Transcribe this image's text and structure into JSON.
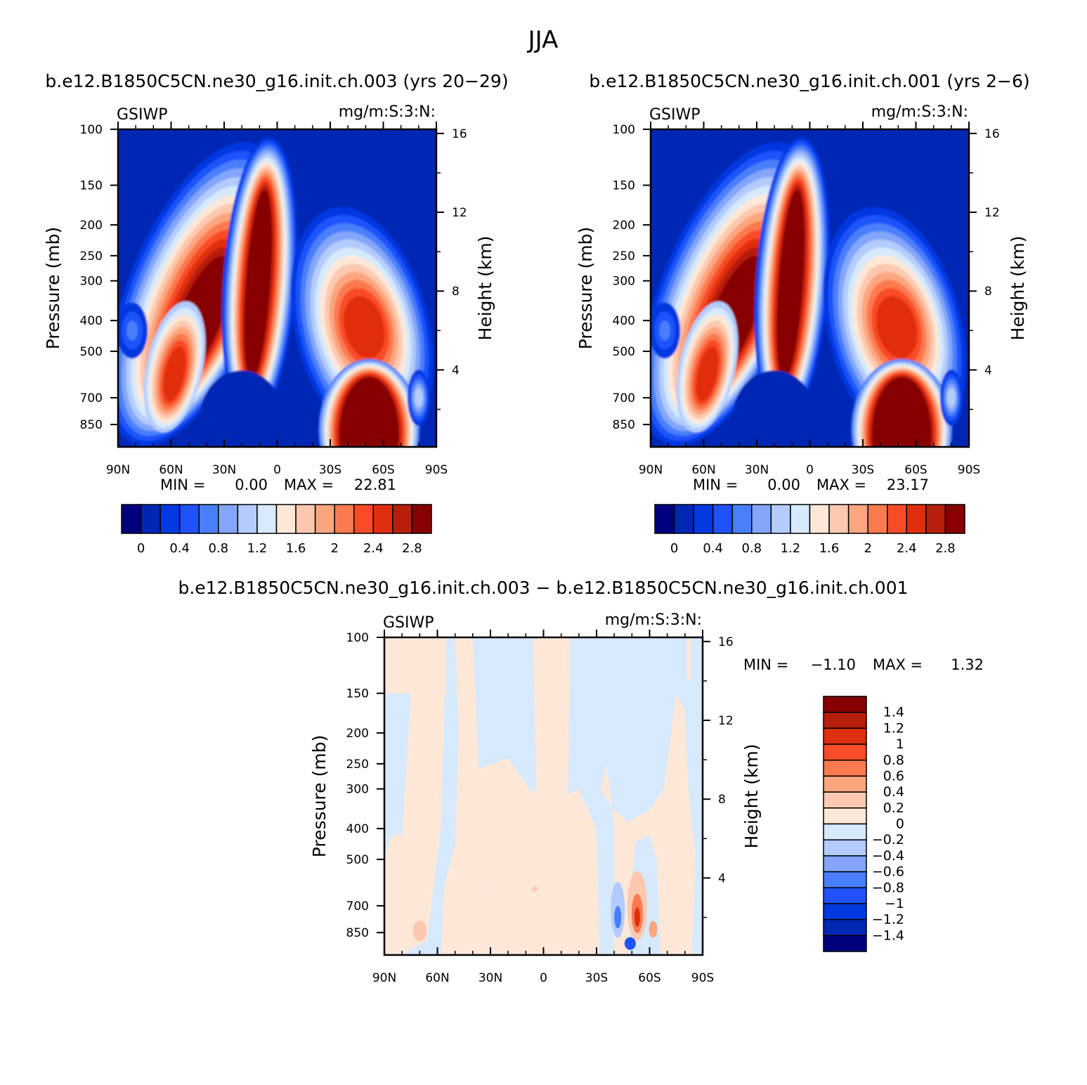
{
  "figure_title": "JJA",
  "colors": {
    "main_scale": [
      "#00007f",
      "#0027b4",
      "#0039e0",
      "#1f52fb",
      "#4a7ffb",
      "#84a6fa",
      "#b3ccfd",
      "#d6e9fd",
      "#fde8d8",
      "#fcc9b0",
      "#fca680",
      "#fb7a50",
      "#f94c28",
      "#e02f10",
      "#b51f0b",
      "#870000"
    ],
    "diff_scale": [
      "#00007f",
      "#0027b4",
      "#0039e0",
      "#1f52fb",
      "#4a7ffb",
      "#84a6fa",
      "#b3ccfd",
      "#d6e9fd",
      "#fde8d8",
      "#fcc9b0",
      "#fca680",
      "#fb7a50",
      "#f94c28",
      "#e02f10",
      "#b51f0b",
      "#870000"
    ]
  },
  "chart_data": [
    {
      "type": "heatmap",
      "title": "b.e12.B1850C5CN.ne30_g16.init.ch.003 (yrs 20-29)",
      "left_label": "GSIWP",
      "right_label": "mg/m:S:3:N:",
      "ylabel": "Pressure (mb)",
      "y2label": "Height (km)",
      "xlabel": "",
      "x_ticks": [
        "90N",
        "60N",
        "30N",
        "0",
        "30S",
        "60S",
        "90S"
      ],
      "x_values": [
        90,
        60,
        30,
        0,
        -30,
        -60,
        -90
      ],
      "y_ticks": [
        "100",
        "150",
        "200",
        "250",
        "300",
        "400",
        "500",
        "700",
        "850"
      ],
      "y_values": [
        100,
        150,
        200,
        250,
        300,
        400,
        500,
        700,
        850
      ],
      "y2_ticks": [
        "16",
        "12",
        "8",
        "4"
      ],
      "y2_values": [
        16,
        12,
        8,
        4
      ],
      "ylim": [
        100,
        1000
      ],
      "min_label": "MIN =",
      "min_value": "0.00",
      "max_label": "MAX =",
      "max_value": "22.81",
      "colorbar_orientation": "horizontal",
      "colorbar_labels": [
        "0",
        "0.4",
        "0.8",
        "1.2",
        "1.6",
        "2",
        "2.4",
        "2.8"
      ],
      "levels": [
        0,
        0.2,
        0.4,
        0.6,
        0.8,
        1,
        1.2,
        1.4,
        1.6,
        1.8,
        2,
        2.2,
        2.4,
        2.6,
        2.8
      ]
    },
    {
      "type": "heatmap",
      "title": "b.e12.B1850C5CN.ne30_g16.init.ch.001 (yrs 2-6)",
      "left_label": "GSIWP",
      "right_label": "mg/m:S:3:N:",
      "ylabel": "Pressure (mb)",
      "y2label": "Height (km)",
      "xlabel": "",
      "x_ticks": [
        "90N",
        "60N",
        "30N",
        "0",
        "30S",
        "60S",
        "90S"
      ],
      "x_values": [
        90,
        60,
        30,
        0,
        -30,
        -60,
        -90
      ],
      "y_ticks": [
        "100",
        "150",
        "200",
        "250",
        "300",
        "400",
        "500",
        "700",
        "850"
      ],
      "y_values": [
        100,
        150,
        200,
        250,
        300,
        400,
        500,
        700,
        850
      ],
      "y2_ticks": [
        "16",
        "12",
        "8",
        "4"
      ],
      "y2_values": [
        16,
        12,
        8,
        4
      ],
      "ylim": [
        100,
        1000
      ],
      "min_label": "MIN =",
      "min_value": "0.00",
      "max_label": "MAX =",
      "max_value": "23.17",
      "colorbar_orientation": "horizontal",
      "colorbar_labels": [
        "0",
        "0.4",
        "0.8",
        "1.2",
        "1.6",
        "2",
        "2.4",
        "2.8"
      ],
      "levels": [
        0,
        0.2,
        0.4,
        0.6,
        0.8,
        1,
        1.2,
        1.4,
        1.6,
        1.8,
        2,
        2.2,
        2.4,
        2.6,
        2.8
      ]
    },
    {
      "type": "heatmap",
      "title": "b.e12.B1850C5CN.ne30_g16.init.ch.003 - b.e12.B1850C5CN.ne30_g16.init.ch.001",
      "left_label": "GSIWP",
      "right_label": "mg/m:S:3:N:",
      "ylabel": "Pressure (mb)",
      "y2label": "Height (km)",
      "xlabel": "",
      "x_ticks": [
        "90N",
        "60N",
        "30N",
        "0",
        "30S",
        "60S",
        "90S"
      ],
      "x_values": [
        90,
        60,
        30,
        0,
        -30,
        -60,
        -90
      ],
      "y_ticks": [
        "100",
        "150",
        "200",
        "250",
        "300",
        "400",
        "500",
        "700",
        "850"
      ],
      "y_values": [
        100,
        150,
        200,
        250,
        300,
        400,
        500,
        700,
        850
      ],
      "y2_ticks": [
        "16",
        "12",
        "8",
        "4"
      ],
      "y2_values": [
        16,
        12,
        8,
        4
      ],
      "ylim": [
        100,
        1000
      ],
      "min_label": "MIN =",
      "min_value": "-1.10",
      "max_label": "MAX =",
      "max_value": "1.32",
      "colorbar_orientation": "vertical",
      "colorbar_labels": [
        "1.4",
        "1.2",
        "1",
        "0.8",
        "0.6",
        "0.4",
        "0.2",
        "0",
        "-0.2",
        "-0.4",
        "-0.6",
        "-0.8",
        "-1",
        "-1.2",
        "-1.4"
      ],
      "levels": [
        -1.4,
        -1.2,
        -1,
        -0.8,
        -0.6,
        -0.4,
        -0.2,
        0,
        0.2,
        0.4,
        0.6,
        0.8,
        1,
        1.2,
        1.4
      ]
    }
  ]
}
